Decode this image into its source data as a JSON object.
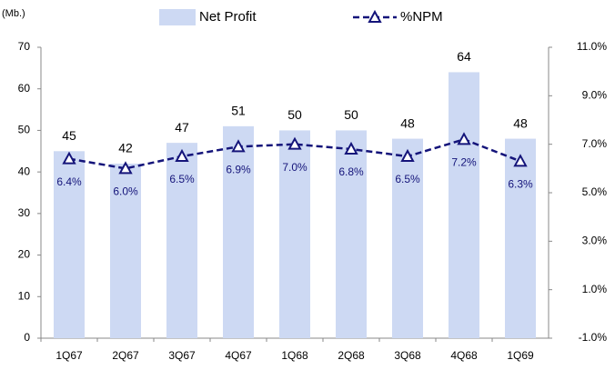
{
  "chart_data": {
    "type": "bar",
    "ylabel": "(Mb.)",
    "categories": [
      "1Q67",
      "2Q67",
      "3Q67",
      "4Q67",
      "1Q68",
      "2Q68",
      "3Q68",
      "4Q68",
      "1Q69"
    ],
    "series": [
      {
        "name": "Net Profit",
        "type": "bar",
        "color": "#cdd9f3",
        "values": [
          45,
          42,
          47,
          51,
          50,
          50,
          48,
          64,
          48
        ]
      },
      {
        "name": "%NPM",
        "type": "line",
        "axis": "y2",
        "color": "#14147a",
        "values": [
          6.4,
          6.0,
          6.5,
          6.9,
          7.0,
          6.8,
          6.5,
          7.2,
          6.3
        ],
        "value_labels": [
          "6.4%",
          "6.0%",
          "6.5%",
          "6.9%",
          "7.0%",
          "6.8%",
          "6.5%",
          "7.2%",
          "6.3%"
        ]
      }
    ],
    "ylim": [
      0,
      70
    ],
    "yticks": [
      0,
      10,
      20,
      30,
      40,
      50,
      60,
      70
    ],
    "y2lim": [
      -1.0,
      11.0
    ],
    "y2ticks": [
      {
        "value": -1.0,
        "label": "-1.0%"
      },
      {
        "value": 1.0,
        "label": "1.0%"
      },
      {
        "value": 3.0,
        "label": "3.0%"
      },
      {
        "value": 5.0,
        "label": "5.0%"
      },
      {
        "value": 7.0,
        "label": "7.0%"
      },
      {
        "value": 9.0,
        "label": "9.0%"
      },
      {
        "value": 11.0,
        "label": "11.0%"
      }
    ],
    "grid": false
  }
}
